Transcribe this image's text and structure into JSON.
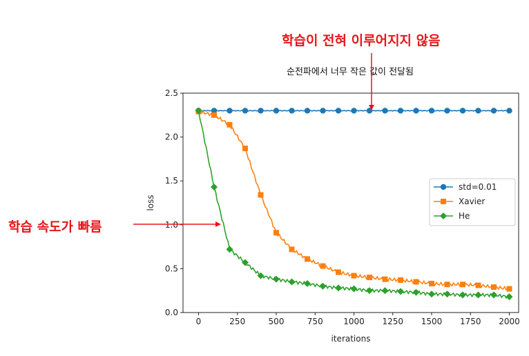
{
  "annotations": {
    "top_title": "학습이 전혀 이루어지지 않음",
    "top_subtitle": "순전파에서 너무 작은 값이 전달됨",
    "left_label": "학습 속도가 빠름"
  },
  "chart_data": {
    "type": "line",
    "xlabel": "iterations",
    "ylabel": "loss",
    "xlim": [
      -100,
      2060
    ],
    "ylim": [
      0,
      2.5
    ],
    "xticks": [
      "0",
      "250",
      "500",
      "750",
      "1000",
      "1250",
      "1500",
      "1750",
      "2000"
    ],
    "yticks": [
      "0.0",
      "0.5",
      "1.0",
      "1.5",
      "2.0",
      "2.5"
    ],
    "legend_position": "center-right",
    "grid": false,
    "x": [
      0,
      100,
      200,
      300,
      400,
      500,
      600,
      700,
      800,
      900,
      1000,
      1100,
      1200,
      1300,
      1400,
      1500,
      1600,
      1700,
      1800,
      1900,
      2000
    ],
    "series": [
      {
        "name": "std=0.01",
        "color": "#1f77b4",
        "marker": "circle",
        "values": [
          2.3,
          2.3,
          2.3,
          2.3,
          2.3,
          2.3,
          2.3,
          2.3,
          2.3,
          2.3,
          2.3,
          2.3,
          2.3,
          2.3,
          2.3,
          2.3,
          2.3,
          2.3,
          2.3,
          2.3,
          2.3
        ]
      },
      {
        "name": "Xavier",
        "color": "#ff7f0e",
        "marker": "square",
        "values": [
          2.29,
          2.25,
          2.14,
          1.87,
          1.34,
          0.91,
          0.72,
          0.61,
          0.53,
          0.46,
          0.42,
          0.4,
          0.38,
          0.37,
          0.35,
          0.33,
          0.32,
          0.32,
          0.31,
          0.29,
          0.27
        ]
      },
      {
        "name": "He",
        "color": "#2ca02c",
        "marker": "diamond",
        "values": [
          2.3,
          1.43,
          0.72,
          0.57,
          0.42,
          0.38,
          0.35,
          0.33,
          0.3,
          0.28,
          0.27,
          0.25,
          0.25,
          0.24,
          0.23,
          0.21,
          0.21,
          0.2,
          0.2,
          0.2,
          0.18
        ]
      }
    ]
  }
}
